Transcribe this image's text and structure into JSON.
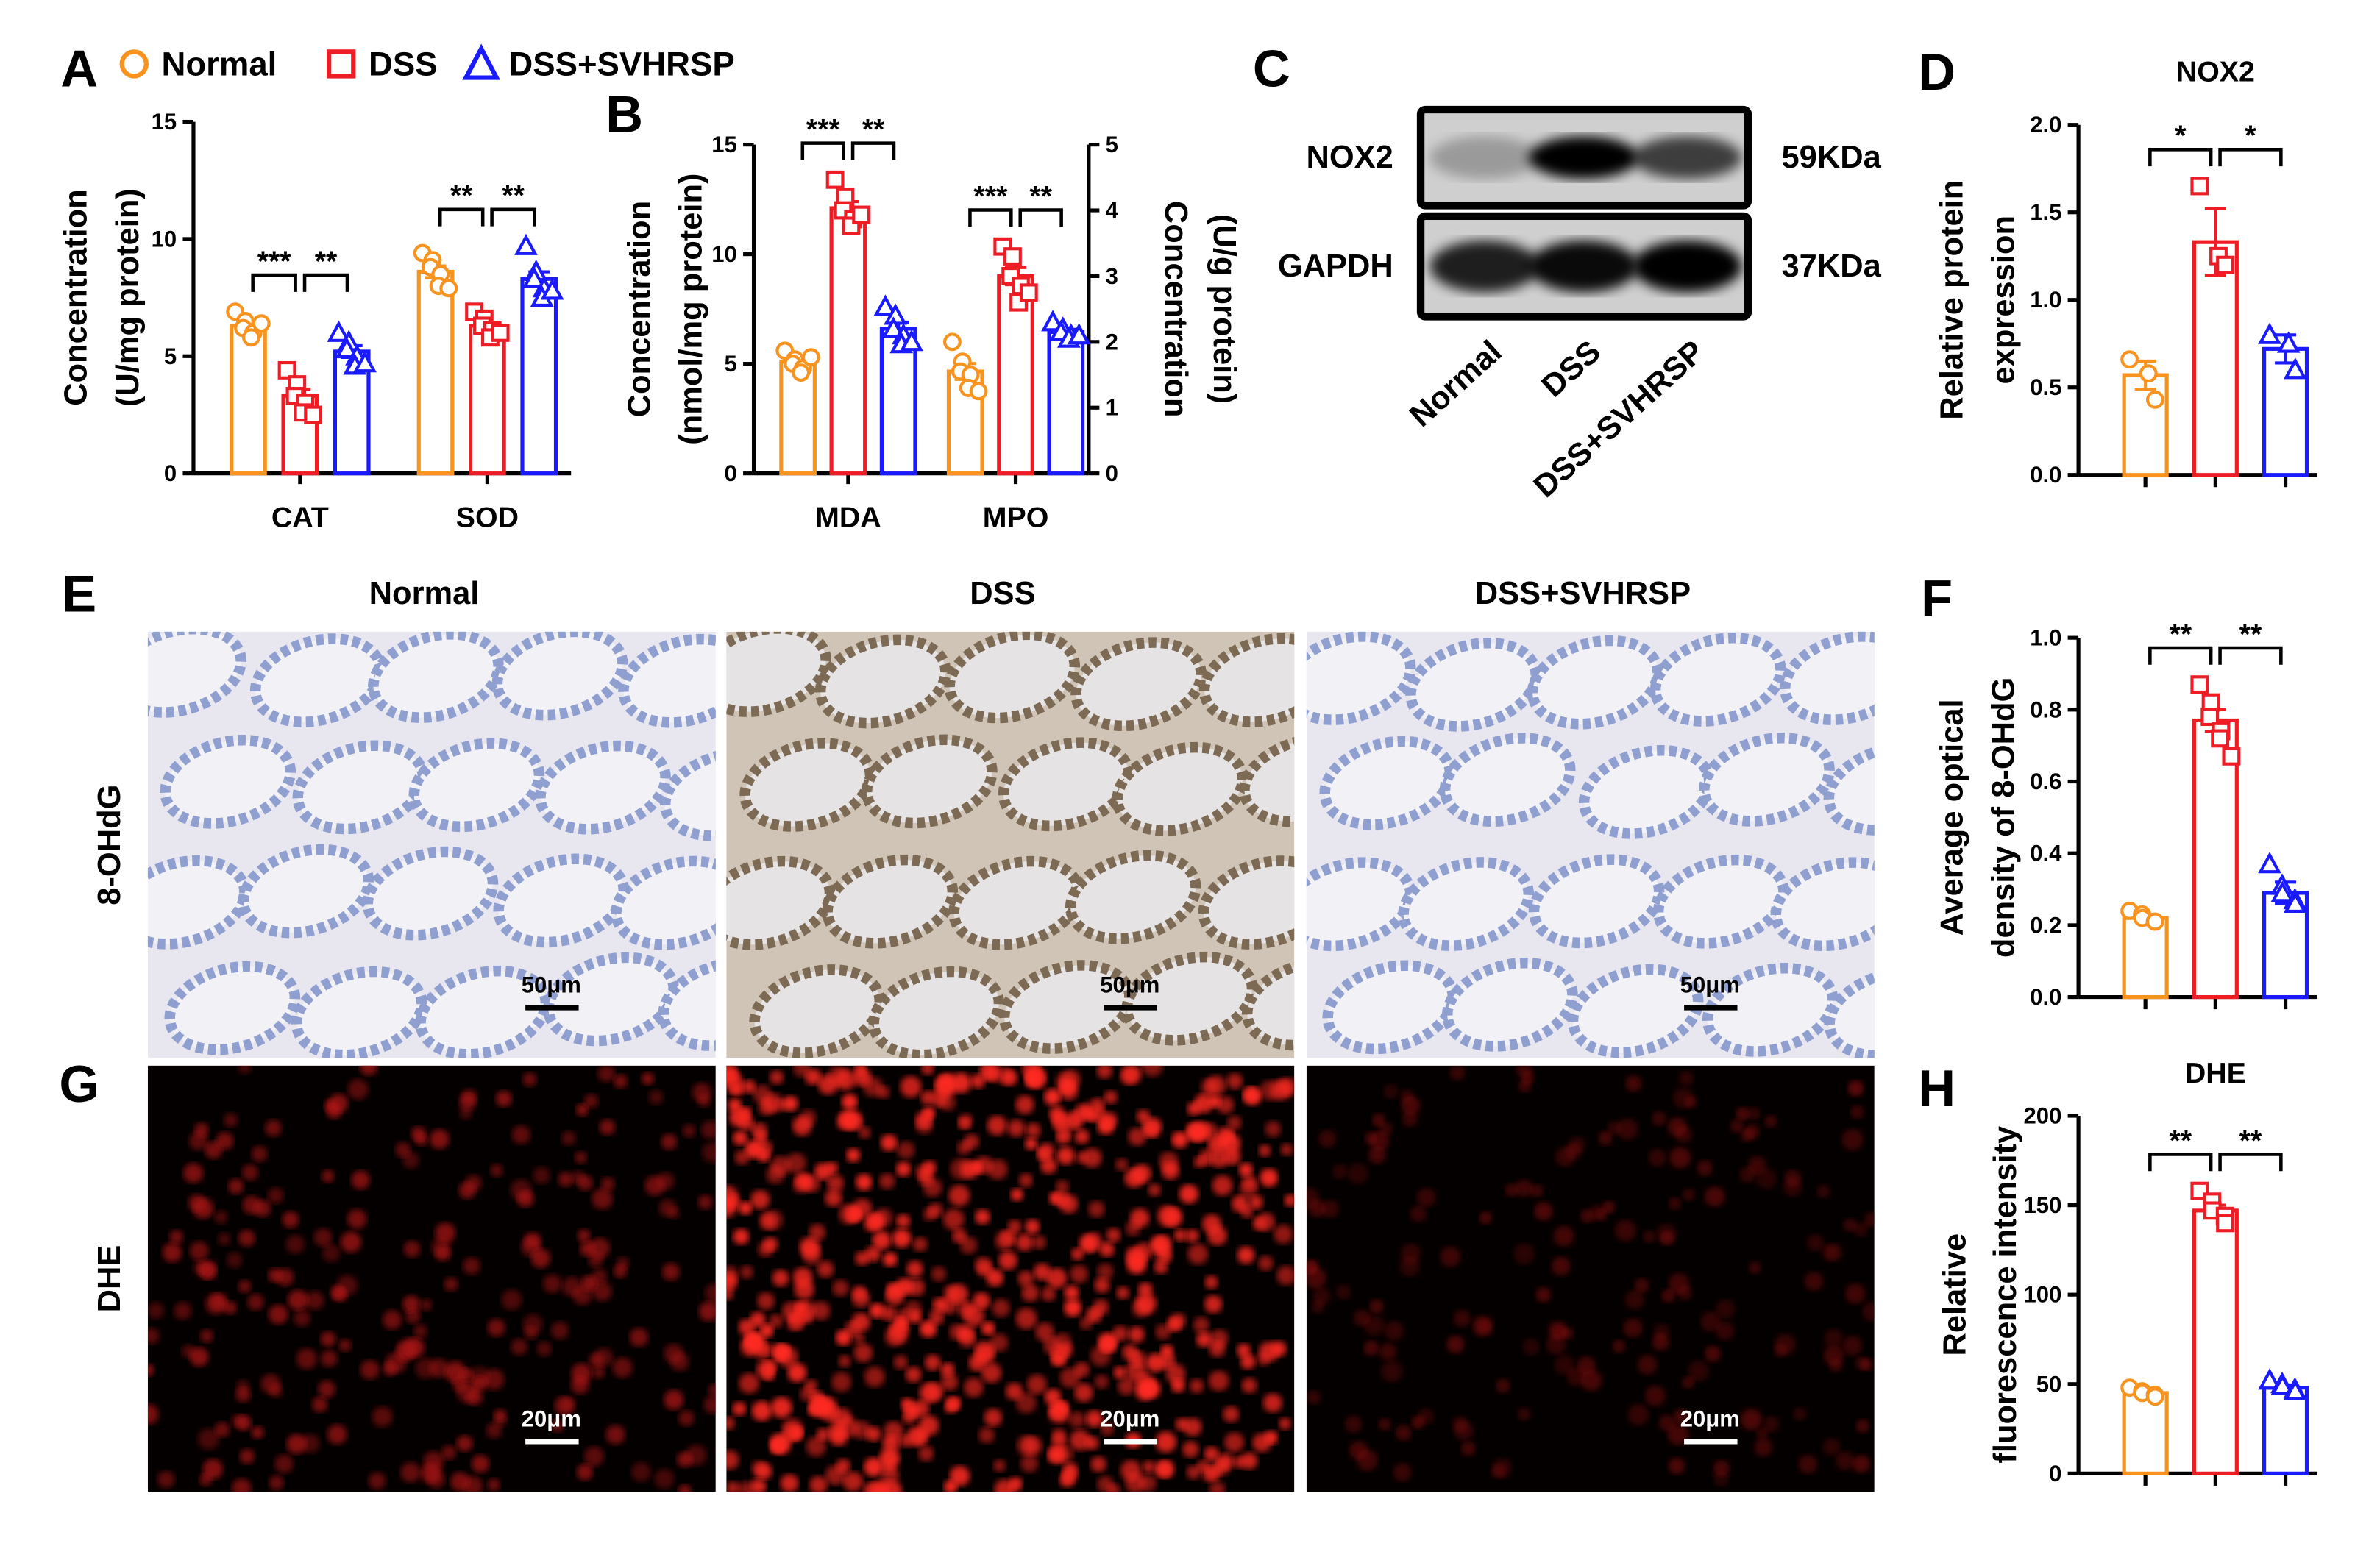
{
  "chart_data": [
    {
      "type": "bar",
      "categories": [
        "CAT",
        "SOD"
      ],
      "ylabel": [
        "Concentration",
        "(U/mg protein)"
      ],
      "ylim": [
        0,
        15
      ],
      "yticks": [
        0,
        5,
        10,
        15
      ],
      "series": [
        {
          "name": "Normal",
          "color": "#f7931e",
          "marker": "circle",
          "values": [
            6.3,
            8.6
          ],
          "errors": [
            0.2,
            0.25
          ],
          "points": [
            [
              6.9,
              6.5,
              6.2,
              6.0,
              5.8,
              6.4
            ],
            [
              9.4,
              9.1,
              8.8,
              8.5,
              8.0,
              7.9
            ]
          ]
        },
        {
          "name": "DSS",
          "color": "#ee1c25",
          "marker": "square",
          "values": [
            3.3,
            6.3
          ],
          "errors": [
            0.3,
            0.15
          ],
          "points": [
            [
              4.4,
              3.8,
              3.3,
              3.0,
              2.6,
              2.5
            ],
            [
              6.9,
              6.6,
              6.3,
              6.1,
              5.8,
              6.0
            ]
          ]
        },
        {
          "name": "DSS+SVHRSP",
          "color": "#1a1aff",
          "marker": "triangle",
          "values": [
            5.2,
            8.3
          ],
          "errors": [
            0.25,
            0.3
          ],
          "points": [
            [
              6.0,
              5.6,
              5.3,
              5.0,
              4.6,
              4.7
            ],
            [
              9.7,
              8.6,
              8.3,
              7.9,
              7.5,
              7.8
            ]
          ]
        }
      ],
      "annotations": [
        [
          "***",
          "**"
        ],
        [
          "**",
          "**"
        ]
      ]
    },
    {
      "type": "bar",
      "categories": [
        "MDA",
        "MPO"
      ],
      "category_axes": [
        "y",
        "y2"
      ],
      "ylabel": [
        "Concentration",
        "(nmol/mg protein)"
      ],
      "y2label": [
        "Concentration",
        "(U/g protein)"
      ],
      "ylim": [
        0,
        15
      ],
      "yticks": [
        0,
        5,
        10,
        15
      ],
      "y2lim": [
        0,
        5
      ],
      "y2ticks": [
        0,
        1,
        2,
        3,
        4,
        5
      ],
      "series": [
        {
          "color": "#f7931e",
          "marker": "circle",
          "values": [
            5.1,
            1.55
          ],
          "errors": [
            0.15,
            0.12
          ],
          "points": [
            [
              5.6,
              5.2,
              5.0,
              4.8,
              4.6,
              5.3
            ],
            [
              2.0,
              1.7,
              1.55,
              1.5,
              1.3,
              1.25
            ]
          ]
        },
        {
          "color": "#ee1c25",
          "marker": "square",
          "values": [
            12.1,
            3.0
          ],
          "errors": [
            0.3,
            0.13
          ],
          "points": [
            [
              13.4,
              12.6,
              12.0,
              11.6,
              11.3,
              11.8
            ],
            [
              3.45,
              3.3,
              3.0,
              2.85,
              2.6,
              2.75
            ]
          ]
        },
        {
          "color": "#1a1aff",
          "marker": "triangle",
          "values": [
            6.6,
            2.15
          ],
          "errors": [
            0.3,
            0.04
          ],
          "points": [
            [
              7.6,
              7.2,
              6.6,
              6.3,
              5.9,
              6.0
            ],
            [
              2.3,
              2.2,
              2.15,
              2.1,
              2.05,
              2.1
            ]
          ]
        }
      ],
      "annotations": [
        [
          "***",
          "**"
        ],
        [
          "***",
          "**"
        ]
      ]
    },
    {
      "type": "bar",
      "title": "NOX2",
      "categories": [
        null
      ],
      "ylabel": [
        "Relative protein",
        "expression"
      ],
      "ylim": [
        0,
        2
      ],
      "yticks": [
        {
          "value": 0,
          "label": "0.0"
        },
        0.5,
        {
          "value": 1,
          "label": "1.0"
        },
        1.5,
        {
          "value": 2,
          "label": "2.0"
        }
      ],
      "series": [
        {
          "color": "#f7931e",
          "marker": "circle",
          "values": [
            0.57
          ],
          "errors": [
            0.08
          ],
          "points": [
            [
              0.66,
              0.58,
              0.43
            ]
          ]
        },
        {
          "color": "#ee1c25",
          "marker": "square",
          "values": [
            1.33
          ],
          "errors": [
            0.19
          ],
          "points": [
            [
              1.65,
              1.25,
              1.2
            ]
          ]
        },
        {
          "color": "#1a1aff",
          "marker": "triangle",
          "values": [
            0.72
          ],
          "errors": [
            0.08
          ],
          "points": [
            [
              0.8,
              0.75,
              0.6
            ]
          ]
        }
      ],
      "annotations": [
        [
          "*",
          "*"
        ]
      ]
    },
    {
      "type": "bar",
      "categories": [
        null
      ],
      "ylabel": [
        "Average optical",
        "density of 8-OHdG"
      ],
      "ylim": [
        0,
        1
      ],
      "yticks": [
        {
          "value": 0,
          "label": "0.0"
        },
        0.2,
        0.4,
        0.6,
        0.8,
        {
          "value": 1,
          "label": "1.0"
        }
      ],
      "series": [
        {
          "color": "#f7931e",
          "marker": "circle",
          "values": [
            0.22
          ],
          "errors": [
            0.01
          ],
          "points": [
            [
              0.24,
              0.23,
              0.22,
              0.21,
              0.21
            ]
          ]
        },
        {
          "color": "#ee1c25",
          "marker": "square",
          "values": [
            0.77
          ],
          "errors": [
            0.03
          ],
          "points": [
            [
              0.87,
              0.82,
              0.78,
              0.74,
              0.72,
              0.67
            ]
          ]
        },
        {
          "color": "#1a1aff",
          "marker": "triangle",
          "values": [
            0.29
          ],
          "errors": [
            0.03
          ],
          "points": [
            [
              0.37,
              0.31,
              0.29,
              0.27,
              0.26
            ]
          ]
        }
      ],
      "annotations": [
        [
          "**",
          "**"
        ]
      ]
    },
    {
      "type": "bar",
      "title": "DHE",
      "categories": [
        null
      ],
      "ylabel": [
        "Relative",
        "fluorescence intensity"
      ],
      "ylim": [
        0,
        200
      ],
      "yticks": [
        0,
        50,
        100,
        150,
        200
      ],
      "series": [
        {
          "color": "#f7931e",
          "marker": "circle",
          "values": [
            45
          ],
          "errors": [
            1.5
          ],
          "points": [
            [
              48,
              46,
              45,
              44,
              43
            ]
          ]
        },
        {
          "color": "#ee1c25",
          "marker": "square",
          "values": [
            147
          ],
          "errors": [
            3
          ],
          "points": [
            [
              158,
              152,
              147,
              144,
              140
            ]
          ]
        },
        {
          "color": "#1a1aff",
          "marker": "triangle",
          "values": [
            48
          ],
          "errors": [
            1.5
          ],
          "points": [
            [
              52,
              50,
              49,
              47,
              46
            ]
          ]
        }
      ],
      "annotations": [
        [
          "**",
          "**"
        ]
      ]
    }
  ],
  "figure": {
    "panel_labels": [
      "A",
      "B",
      "C",
      "D",
      "E",
      "F",
      "G",
      "H"
    ],
    "blot": {
      "rows": [
        {
          "label": "NOX2",
          "size": "59KDa"
        },
        {
          "label": "GAPDH",
          "size": "37KDa"
        }
      ],
      "lanes": [
        "Normal",
        "DSS",
        "DSS+SVHRSP"
      ]
    },
    "micrographs": {
      "columns": [
        "Normal",
        "DSS",
        "DSS+SVHRSP"
      ],
      "rows": [
        {
          "label": "8-OHdG",
          "scale_bar": "50μm"
        },
        {
          "label": "DHE",
          "scale_bar": "20μm"
        }
      ]
    }
  }
}
